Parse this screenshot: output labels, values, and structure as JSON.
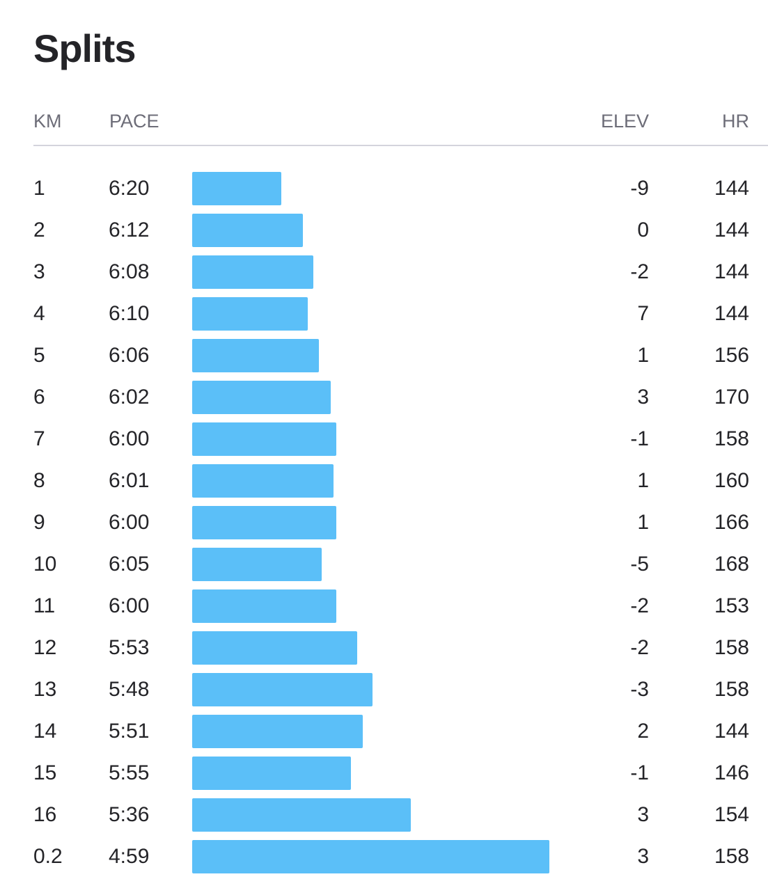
{
  "title": "Splits",
  "columns": {
    "km": "KM",
    "pace": "PACE",
    "elev": "ELEV",
    "hr": "HR"
  },
  "colors": {
    "bar": "#5bbff8",
    "text": "#242428",
    "header_text": "#6d6d78",
    "divider": "#d4d4dc"
  },
  "splits": [
    {
      "km": "1",
      "pace": "6:20",
      "elev": "-9",
      "hr": "144"
    },
    {
      "km": "2",
      "pace": "6:12",
      "elev": "0",
      "hr": "144"
    },
    {
      "km": "3",
      "pace": "6:08",
      "elev": "-2",
      "hr": "144"
    },
    {
      "km": "4",
      "pace": "6:10",
      "elev": "7",
      "hr": "144"
    },
    {
      "km": "5",
      "pace": "6:06",
      "elev": "1",
      "hr": "156"
    },
    {
      "km": "6",
      "pace": "6:02",
      "elev": "3",
      "hr": "170"
    },
    {
      "km": "7",
      "pace": "6:00",
      "elev": "-1",
      "hr": "158"
    },
    {
      "km": "8",
      "pace": "6:01",
      "elev": "1",
      "hr": "160"
    },
    {
      "km": "9",
      "pace": "6:00",
      "elev": "1",
      "hr": "166"
    },
    {
      "km": "10",
      "pace": "6:05",
      "elev": "-5",
      "hr": "168"
    },
    {
      "km": "11",
      "pace": "6:00",
      "elev": "-2",
      "hr": "153"
    },
    {
      "km": "12",
      "pace": "5:53",
      "elev": "-2",
      "hr": "158"
    },
    {
      "km": "13",
      "pace": "5:48",
      "elev": "-3",
      "hr": "158"
    },
    {
      "km": "14",
      "pace": "5:51",
      "elev": "2",
      "hr": "144"
    },
    {
      "km": "15",
      "pace": "5:55",
      "elev": "-1",
      "hr": "146"
    },
    {
      "km": "16",
      "pace": "5:36",
      "elev": "3",
      "hr": "154"
    },
    {
      "km": "0.2",
      "pace": "4:59",
      "elev": "3",
      "hr": "158"
    }
  ]
}
